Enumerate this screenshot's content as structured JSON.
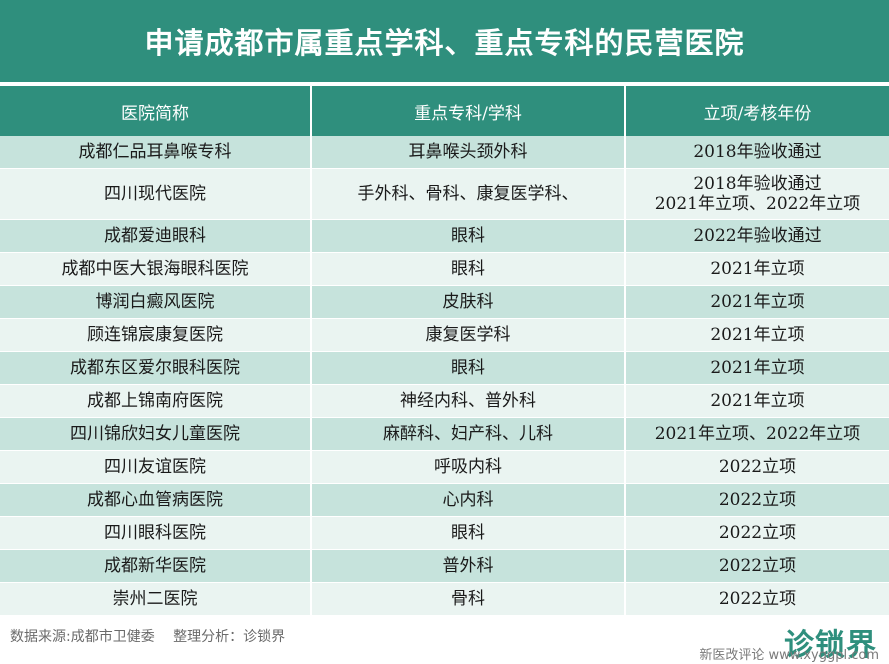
{
  "title": "申请成都市属重点学科、重点专科的民营医院",
  "table": {
    "headers": [
      "医院简称",
      "重点专科/学科",
      "立项/考核年份"
    ],
    "rows": [
      {
        "hospital": "成都仁品耳鼻喉专科",
        "specialty": "耳鼻喉头颈外科",
        "year_lines": [
          "2018年验收通过"
        ]
      },
      {
        "hospital": "四川现代医院",
        "specialty": "手外科、骨科、康复医学科、",
        "year_lines": [
          "2018年验收通过",
          "2021年立项、2022年立项"
        ]
      },
      {
        "hospital": "成都爱迪眼科",
        "specialty": "眼科",
        "year_lines": [
          "2022年验收通过"
        ]
      },
      {
        "hospital": "成都中医大银海眼科医院",
        "specialty": "眼科",
        "year_lines": [
          "2021年立项"
        ]
      },
      {
        "hospital": "博润白癜风医院",
        "specialty": "皮肤科",
        "year_lines": [
          "2021年立项"
        ]
      },
      {
        "hospital": "顾连锦宸康复医院",
        "specialty": "康复医学科",
        "year_lines": [
          "2021年立项"
        ]
      },
      {
        "hospital": "成都东区爱尔眼科医院",
        "specialty": "眼科",
        "year_lines": [
          "2021年立项"
        ]
      },
      {
        "hospital": "成都上锦南府医院",
        "specialty": "神经内科、普外科",
        "year_lines": [
          "2021年立项"
        ]
      },
      {
        "hospital": "四川锦欣妇女儿童医院",
        "specialty": "麻醉科、妇产科、儿科",
        "year_lines": [
          "2021年立项、2022年立项"
        ]
      },
      {
        "hospital": "四川友谊医院",
        "specialty": "呼吸内科",
        "year_lines": [
          "2022立项"
        ]
      },
      {
        "hospital": "成都心血管病医院",
        "specialty": "心内科",
        "year_lines": [
          "2022立项"
        ]
      },
      {
        "hospital": "四川眼科医院",
        "specialty": "眼科",
        "year_lines": [
          "2022立项"
        ]
      },
      {
        "hospital": "成都新华医院",
        "specialty": "普外科",
        "year_lines": [
          "2022立项"
        ]
      },
      {
        "hospital": "崇州二医院",
        "specialty": "骨科",
        "year_lines": [
          "2022立项"
        ]
      }
    ]
  },
  "footer": {
    "source": "数据来源:成都市卫健委　 整理分析：诊锁界",
    "logo": "诊锁界",
    "watermark": "新医改评论 www.xyggpl.com"
  }
}
